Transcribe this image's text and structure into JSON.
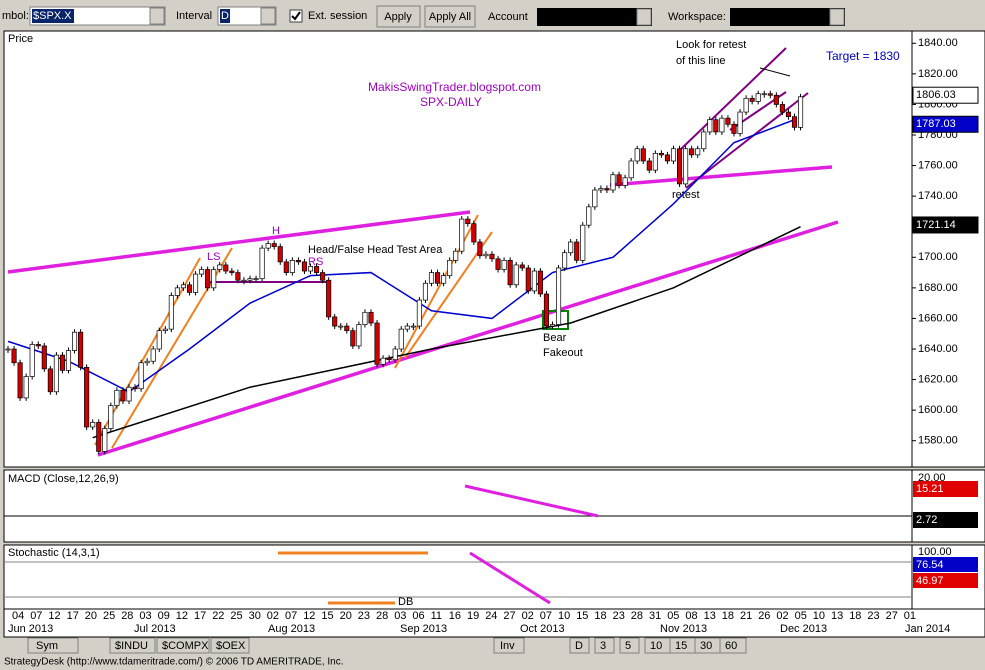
{
  "toolbar": {
    "symbol_label": "mbol:",
    "symbol": "$SPX.X",
    "interval_label": "Interval",
    "interval": "D",
    "ext_session": "Ext. session",
    "apply": "Apply",
    "apply_all": "Apply All",
    "account_label": "Account",
    "workspace_label": "Workspace:"
  },
  "price_chart": {
    "type": "candlestick",
    "title": "Price",
    "closes": [
      1640,
      1631,
      1608,
      1622,
      1643,
      1642,
      1627,
      1612,
      1636,
      1626,
      1639,
      1651,
      1628,
      1589,
      1592,
      1573,
      1588,
      1603,
      1613,
      1606,
      1615,
      1614,
      1631,
      1632,
      1640,
      1652,
      1653,
      1675,
      1680,
      1682,
      1677,
      1689,
      1692,
      1680,
      1692,
      1695,
      1691,
      1690,
      1685,
      1685,
      1686,
      1686,
      1706,
      1709,
      1707,
      1697,
      1690,
      1698,
      1697,
      1691,
      1694,
      1690,
      1685,
      1661,
      1655,
      1655,
      1652,
      1642,
      1656,
      1664,
      1657,
      1630,
      1634,
      1633,
      1640,
      1653,
      1655,
      1655,
      1672,
      1683,
      1690,
      1683,
      1688,
      1698,
      1704,
      1725,
      1722,
      1710,
      1701,
      1702,
      1699,
      1692,
      1698,
      1682,
      1695,
      1693,
      1678,
      1691,
      1676,
      1655,
      1656,
      1693,
      1703,
      1710,
      1698,
      1721,
      1733,
      1744,
      1745,
      1744,
      1754,
      1747,
      1752,
      1763,
      1771,
      1763,
      1757,
      1768,
      1767,
      1763,
      1771,
      1748,
      1771,
      1767,
      1771,
      1782,
      1790,
      1782,
      1791,
      1787,
      1781,
      1795,
      1804,
      1802,
      1807,
      1807,
      1806,
      1800,
      1795,
      1792,
      1785,
      1805
    ],
    "blue_line": {
      "x": [
        0,
        10,
        20,
        30,
        40,
        50,
        60,
        70,
        80,
        90,
        100,
        110,
        120,
        130
      ],
      "values": [
        1645,
        1632,
        1612,
        1640,
        1670,
        1688,
        1690,
        1665,
        1660,
        1690,
        1700,
        1735,
        1775,
        1790
      ]
    },
    "black_line": {
      "x": [
        14,
        40,
        70,
        93,
        110,
        131
      ],
      "values": [
        1582,
        1615,
        1640,
        1657,
        1680,
        1720
      ]
    },
    "ylim": [
      1570,
      1850
    ],
    "yticks": [
      {
        "value": 1840,
        "label": "1840.00"
      },
      {
        "value": 1820,
        "label": "1820.00"
      },
      {
        "value": 1800,
        "label": "1800.00"
      },
      {
        "value": 1780,
        "label": "1780.00"
      },
      {
        "value": 1760,
        "label": "1760.00"
      },
      {
        "value": 1740,
        "label": "1740.00"
      },
      {
        "value": 1720,
        "label": "1720.00"
      },
      {
        "value": 1700,
        "label": "1700.00"
      },
      {
        "value": 1680,
        "label": "1680.00"
      },
      {
        "value": 1660,
        "label": "1660.00"
      },
      {
        "value": 1640,
        "label": "1640.00"
      },
      {
        "value": 1620,
        "label": "1620.00"
      },
      {
        "value": 1600,
        "label": "1600.00"
      },
      {
        "value": 1580,
        "label": "1580.00"
      }
    ],
    "value_boxes": [
      {
        "value": 1806.03,
        "label": "1806.03"
      },
      {
        "value": 1787.03,
        "label": "1787.03"
      },
      {
        "value": 1721.14,
        "label": "1721.14"
      }
    ],
    "annotations": {
      "blog": "MakisSwingTrader.blogspot.com",
      "subtitle": "SPX-DAILY",
      "target": "Target = 1830",
      "look1": "Look for retest",
      "look2": "of this line",
      "retest": "retest",
      "bear": "Bear",
      "fakeout": "Fakeout",
      "ls": "LS",
      "h": "H",
      "rs": "RS",
      "head": "Head/False Head Test Area",
      "db": "DB"
    }
  },
  "macd": {
    "title": "MACD (Close,12,26,9)",
    "top": "20.00",
    "signal": "15.21",
    "hist": "2.72"
  },
  "stochastic": {
    "title": "Stochastic (14,3,1)",
    "top": "100.00",
    "k": "76.54",
    "d": "46.97"
  },
  "x_axis": {
    "days": [
      "04",
      "07",
      "12",
      "17",
      "20",
      "25",
      "28",
      "03",
      "09",
      "12",
      "17",
      "22",
      "25",
      "30",
      "02",
      "07",
      "12",
      "15",
      "20",
      "23",
      "28",
      "03",
      "06",
      "11",
      "16",
      "19",
      "24",
      "27",
      "02",
      "07",
      "10",
      "15",
      "18",
      "23",
      "28",
      "31",
      "05",
      "08",
      "13",
      "18",
      "21",
      "26",
      "02",
      "05",
      "10",
      "13",
      "18",
      "23",
      "27",
      "01"
    ],
    "months": [
      "Jun 2013",
      "Jul 2013",
      "Aug 2013",
      "Sep 2013",
      "Oct 2013",
      "Nov 2013",
      "Dec 2013",
      "Jan 2014"
    ]
  },
  "tabs": {
    "sym": "Sym",
    "symbols": [
      "$INDU",
      "$COMPX",
      "$OEX"
    ],
    "inv": "Inv",
    "intervals": [
      "D",
      "3",
      "5",
      "10",
      "15",
      "30",
      "60"
    ]
  },
  "status": "StrategyDesk (http://www.tdameritrade.com/) © 2006 TD AMERITRADE, Inc."
}
